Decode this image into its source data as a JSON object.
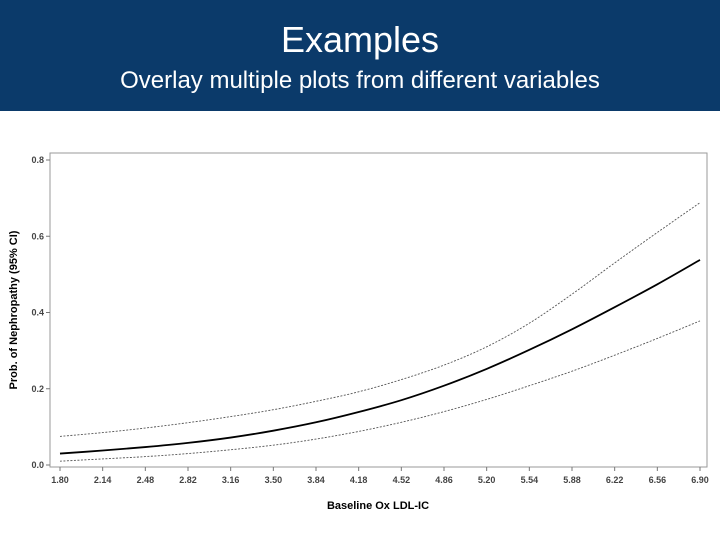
{
  "header": {
    "title": "Examples",
    "subtitle": "Overlay multiple plots from different variables"
  },
  "colors": {
    "header_bg": "#0b3a6a",
    "header_text": "#ffffff",
    "estimate_line": "#000000",
    "ci_line": "#555555"
  },
  "chart_data": {
    "type": "line",
    "title": "",
    "xlabel": "Baseline Ox LDL-IC",
    "ylabel": "Prob. of Nephropathy (95% CI)",
    "x_ticks": [
      "1.80",
      "2.14",
      "2.48",
      "2.82",
      "3.16",
      "3.50",
      "3.84",
      "4.18",
      "4.52",
      "4.86",
      "5.20",
      "5.54",
      "5.88",
      "6.22",
      "6.56",
      "6.90"
    ],
    "y_ticks": [
      "0.0",
      "0.2",
      "0.4",
      "0.6",
      "0.8"
    ],
    "xlim": [
      1.8,
      6.9
    ],
    "ylim": [
      0.0,
      0.8
    ],
    "grid": false,
    "legend": "none",
    "x": [
      1.8,
      2.14,
      2.48,
      2.82,
      3.16,
      3.5,
      3.84,
      4.18,
      4.52,
      4.86,
      5.2,
      5.54,
      5.88,
      6.22,
      6.56,
      6.9
    ],
    "series": [
      {
        "role": "estimate",
        "values": [
          0.03,
          0.038,
          0.047,
          0.058,
          0.072,
          0.09,
          0.112,
          0.139,
          0.17,
          0.208,
          0.252,
          0.302,
          0.356,
          0.414,
          0.474,
          0.538
        ]
      },
      {
        "role": "upper_ci",
        "values": [
          0.075,
          0.085,
          0.097,
          0.111,
          0.127,
          0.145,
          0.167,
          0.192,
          0.224,
          0.262,
          0.31,
          0.372,
          0.448,
          0.53,
          0.61,
          0.688
        ]
      },
      {
        "role": "lower_ci",
        "values": [
          0.01,
          0.016,
          0.022,
          0.03,
          0.04,
          0.052,
          0.068,
          0.088,
          0.112,
          0.14,
          0.172,
          0.208,
          0.246,
          0.288,
          0.332,
          0.378
        ]
      }
    ]
  }
}
